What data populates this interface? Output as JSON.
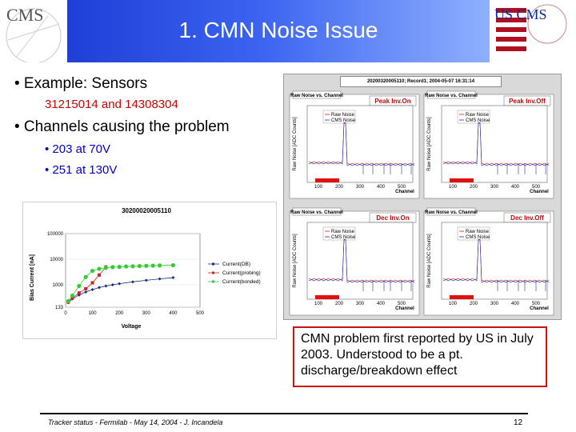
{
  "slide": {
    "title": "1. CMN Noise Issue",
    "logo_left_text": "CMS",
    "logo_right_text": "US CMS"
  },
  "bullets": {
    "b1": "• Example: Sensors",
    "b1_sub": "31215014 and 14308304",
    "b2": "• Channels causing the problem",
    "b2_sub1": "•  203 at 70V",
    "b2_sub2": "•  251 at 130V"
  },
  "noise_panel": {
    "header": "20200320005110; Record1; 2004-05-07 16:31:14",
    "plots": [
      {
        "title": "Raw Noise vs. Channel",
        "badge": "Peak Inv.On",
        "legend_a": "Raw Noise",
        "legend_b": "CMS Noise",
        "ylabel": "Raw Noise [ADC Counts]",
        "xlabel": "Channel",
        "ticks": [
          "100",
          "200",
          "300",
          "400",
          "500"
        ]
      },
      {
        "title": "Raw Noise vs. Channel",
        "badge": "Peak Inv.Off",
        "legend_a": "Raw Noise",
        "legend_b": "CMS Noise",
        "ylabel": "Raw Noise [ADC Counts]",
        "xlabel": "Channel",
        "ticks": [
          "100",
          "200",
          "300",
          "400",
          "500"
        ]
      },
      {
        "title": "Raw Noise vs. Channel",
        "badge": "Dec Inv.On",
        "legend_a": "Raw Noise",
        "legend_b": "CMS Noise",
        "ylabel": "Raw Noise [ADC Counts]",
        "xlabel": "Channel",
        "ticks": [
          "100",
          "200",
          "300",
          "400",
          "500"
        ]
      },
      {
        "title": "Raw Noise vs. Channel",
        "badge": "Dec Inv.Off",
        "legend_a": "Raw Noise",
        "legend_b": "CMS Noise",
        "ylabel": "Raw Noise [ADC Counts]",
        "xlabel": "Channel",
        "ticks": [
          "100",
          "200",
          "300",
          "400",
          "500"
        ]
      }
    ]
  },
  "iv_chart": {
    "title": "30200020005110",
    "ylabel": "Bias Current [nA]",
    "xlabel": "Voltage",
    "yticks": [
      "100000",
      "10000",
      "1000",
      "133"
    ],
    "xticks": [
      "0",
      "100",
      "200",
      "300",
      "400",
      "500"
    ],
    "legend": [
      "Current(DB)",
      "Current(probing)",
      "Current(bonded)"
    ],
    "colors": {
      "db": "#1a2a8a",
      "probing": "#cc2222",
      "bonded": "#33cc33"
    }
  },
  "chart_data": {
    "type": "scatter",
    "title": "30200020005110",
    "xlabel": "Voltage",
    "ylabel": "Bias Current [nA]",
    "xlim": [
      0,
      500
    ],
    "y_scale": "log",
    "ylim": [
      133,
      100000
    ],
    "series": [
      {
        "name": "Current(DB)",
        "x": [
          10,
          25,
          50,
          75,
          100,
          125,
          150,
          175,
          200,
          250,
          300,
          350,
          400
        ],
        "y": [
          200,
          280,
          400,
          520,
          650,
          780,
          900,
          1000,
          1100,
          1300,
          1500,
          1700,
          1900
        ]
      },
      {
        "name": "Current(probing)",
        "x": [
          10,
          25,
          50,
          75,
          100,
          125,
          150
        ],
        "y": [
          210,
          300,
          480,
          700,
          1200,
          2400,
          5000
        ]
      },
      {
        "name": "Current(bonded)",
        "x": [
          10,
          25,
          50,
          75,
          100,
          125,
          150,
          175,
          200,
          225,
          250,
          275,
          300,
          325,
          350,
          400
        ],
        "y": [
          230,
          380,
          900,
          2000,
          3500,
          4200,
          4600,
          4900,
          5000,
          5200,
          5300,
          5400,
          5500,
          5600,
          5700,
          5800
        ]
      }
    ]
  },
  "callout": {
    "text": "CMN problem first reported by US in July 2003. Understood to be a pt. discharge/breakdown effect"
  },
  "footer": {
    "text": "Tracker status - Fermilab - May 14, 2004 - J. Incandela",
    "page": "12"
  }
}
